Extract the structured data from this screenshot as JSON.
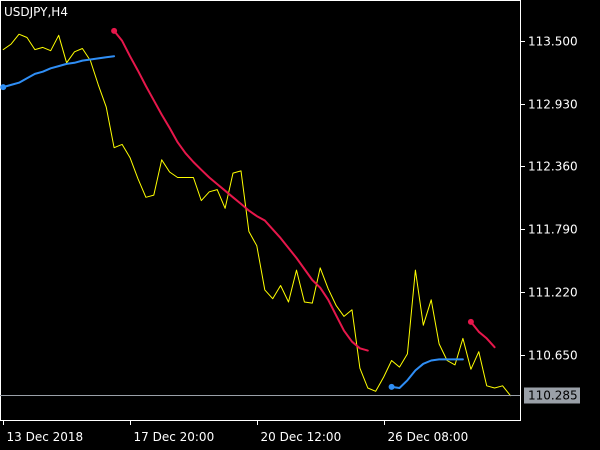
{
  "chart_data": {
    "type": "line",
    "title": "USDJPY,H4",
    "x_tick_labels": [
      "13 Dec 2018",
      "17 Dec 20:00",
      "20 Dec 12:00",
      "26 Dec 08:00"
    ],
    "x_tick_index": [
      0,
      16,
      32,
      48
    ],
    "y_ticks": [
      113.5,
      112.93,
      112.36,
      111.79,
      111.22,
      110.65
    ],
    "y_tick_labels": [
      "113.500",
      "112.930",
      "112.360",
      "111.790",
      "111.220",
      "110.650"
    ],
    "ylim": [
      110.06,
      113.87
    ],
    "xlim": [
      -0.4,
      65.2
    ],
    "current_price": 110.285,
    "current_price_label": "110.285",
    "grid": false,
    "background": "#000000",
    "series": [
      {
        "color": "#ffff00",
        "role": "close",
        "values": [
          113.42,
          113.47,
          113.56,
          113.53,
          113.42,
          113.44,
          113.41,
          113.55,
          113.3,
          113.4,
          113.43,
          113.32,
          113.1,
          112.9,
          112.53,
          112.56,
          112.44,
          112.25,
          112.08,
          112.1,
          112.42,
          112.31,
          112.26,
          112.26,
          112.26,
          112.05,
          112.13,
          112.15,
          111.98,
          112.3,
          112.32,
          111.77,
          111.64,
          111.24,
          111.16,
          111.28,
          111.13,
          111.42,
          111.13,
          111.12,
          111.44,
          111.25,
          111.1,
          111.0,
          111.06,
          110.53,
          110.35,
          110.32,
          110.45,
          110.6,
          110.54,
          110.66,
          111.42,
          110.92,
          111.15,
          110.75,
          110.6,
          110.56,
          110.8,
          110.52,
          110.68,
          110.37,
          110.35,
          110.37,
          110.28
        ]
      },
      {
        "color": "#e6174b",
        "role": "resistance",
        "segments": [
          {
            "start": 14,
            "values": [
              113.59,
              113.5,
              113.36,
              113.23,
              113.09,
              112.96,
              112.83,
              112.71,
              112.58,
              112.48,
              112.4,
              112.33,
              112.26,
              112.2,
              112.14,
              112.08,
              112.02,
              111.96,
              111.91,
              111.87,
              111.79,
              111.71,
              111.62,
              111.53,
              111.43,
              111.33,
              111.26,
              111.15,
              111.01,
              110.87,
              110.77,
              110.71,
              110.69
            ]
          },
          {
            "start": 59,
            "values": [
              110.95,
              110.86,
              110.8,
              110.72
            ]
          }
        ]
      },
      {
        "color": "#2f8ef5",
        "role": "support",
        "segments": [
          {
            "start": 0,
            "values": [
              113.08,
              113.1,
              113.12,
              113.16,
              113.2,
              113.22,
              113.25,
              113.27,
              113.29,
              113.3,
              113.32,
              113.33,
              113.34,
              113.35,
              113.36
            ]
          },
          {
            "start": 49,
            "values": [
              110.36,
              110.35,
              110.42,
              110.51,
              110.57,
              110.6,
              110.61,
              110.61,
              110.61,
              110.61
            ]
          }
        ]
      }
    ]
  }
}
